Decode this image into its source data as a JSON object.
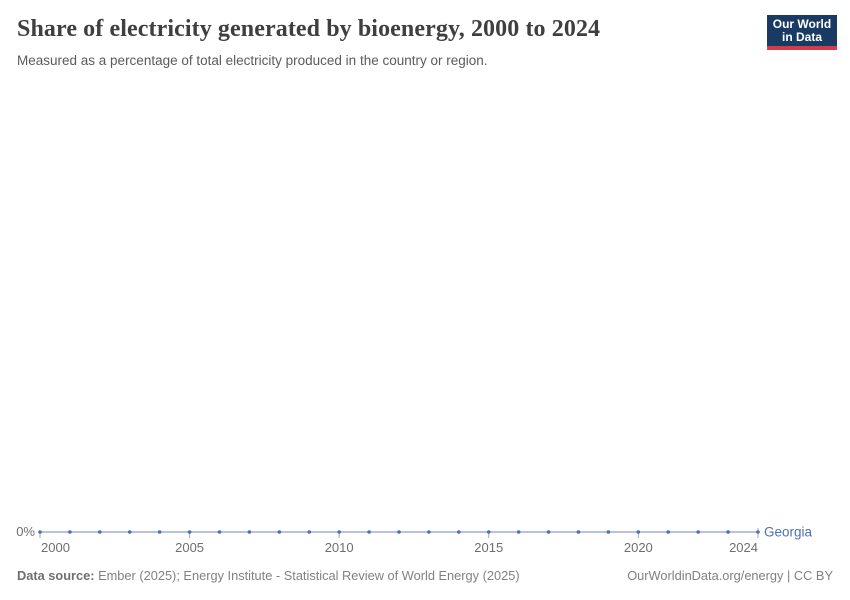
{
  "header": {
    "title": "Share of electricity generated by bioenergy, 2000 to 2024",
    "subtitle": "Measured as a percentage of total electricity produced in the country or region."
  },
  "logo": {
    "line1": "Our World",
    "line2": "in Data",
    "background_color": "#183a63",
    "accent_color": "#d43c4a"
  },
  "chart_data": {
    "type": "line",
    "title": "Share of electricity generated by bioenergy, 2000 to 2024",
    "xlabel": "",
    "ylabel": "",
    "grid": false,
    "x_range": [
      2000,
      2024
    ],
    "x_ticks": [
      2000,
      2005,
      2010,
      2015,
      2020,
      2024
    ],
    "y_tick_labels": [
      "0%"
    ],
    "legend_position": "end-of-line-label",
    "series": [
      {
        "name": "Georgia",
        "color": "#4d70ae",
        "marker": "dot",
        "x": [
          2000,
          2001,
          2002,
          2003,
          2004,
          2005,
          2006,
          2007,
          2008,
          2009,
          2010,
          2011,
          2012,
          2013,
          2014,
          2015,
          2016,
          2017,
          2018,
          2019,
          2020,
          2021,
          2022,
          2023,
          2024
        ],
        "values": [
          0,
          0,
          0,
          0,
          0,
          0,
          0,
          0,
          0,
          0,
          0,
          0,
          0,
          0,
          0,
          0,
          0,
          0,
          0,
          0,
          0,
          0,
          0,
          0,
          0
        ]
      }
    ]
  },
  "footer": {
    "source_label": "Data source:",
    "source_text": " Ember (2025); Energy Institute - Statistical Review of World Energy (2025)",
    "rights": "OurWorldinData.org/energy | CC BY"
  }
}
